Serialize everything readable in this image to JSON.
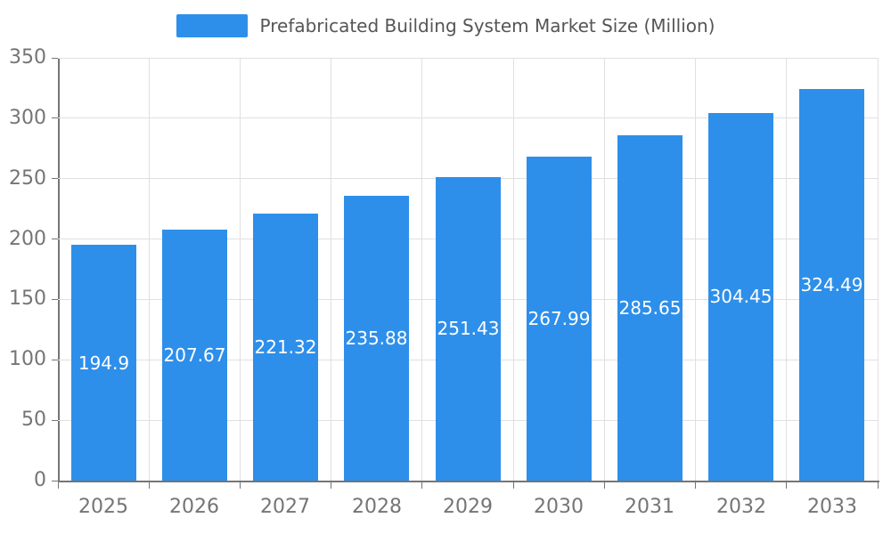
{
  "chart_data": {
    "type": "bar",
    "title": "Prefabricated Building System Market Size (Million)",
    "categories": [
      "2025",
      "2026",
      "2027",
      "2028",
      "2029",
      "2030",
      "2031",
      "2032",
      "2033"
    ],
    "values": [
      194.9,
      207.67,
      221.32,
      235.88,
      251.43,
      267.99,
      285.65,
      304.45,
      324.49
    ],
    "value_labels": [
      "194.9",
      "207.67",
      "221.32",
      "235.88",
      "251.43",
      "267.99",
      "285.65",
      "304.45",
      "324.49"
    ],
    "xlabel": "",
    "ylabel": "",
    "ylim": [
      0,
      350
    ],
    "yticks": [
      0,
      50,
      100,
      150,
      200,
      250,
      300,
      350
    ],
    "grid": true,
    "legend_position": "top-center",
    "legend_label": "Prefabricated Building System Market Size (Million)",
    "colors": {
      "bar": "#2E8FEA",
      "bar_label": "#FFFFFF",
      "axis": "#757575",
      "tick_label": "#757575",
      "gridline": "#E0E0E0",
      "title": "#555555",
      "background": "#FFFFFF"
    }
  }
}
